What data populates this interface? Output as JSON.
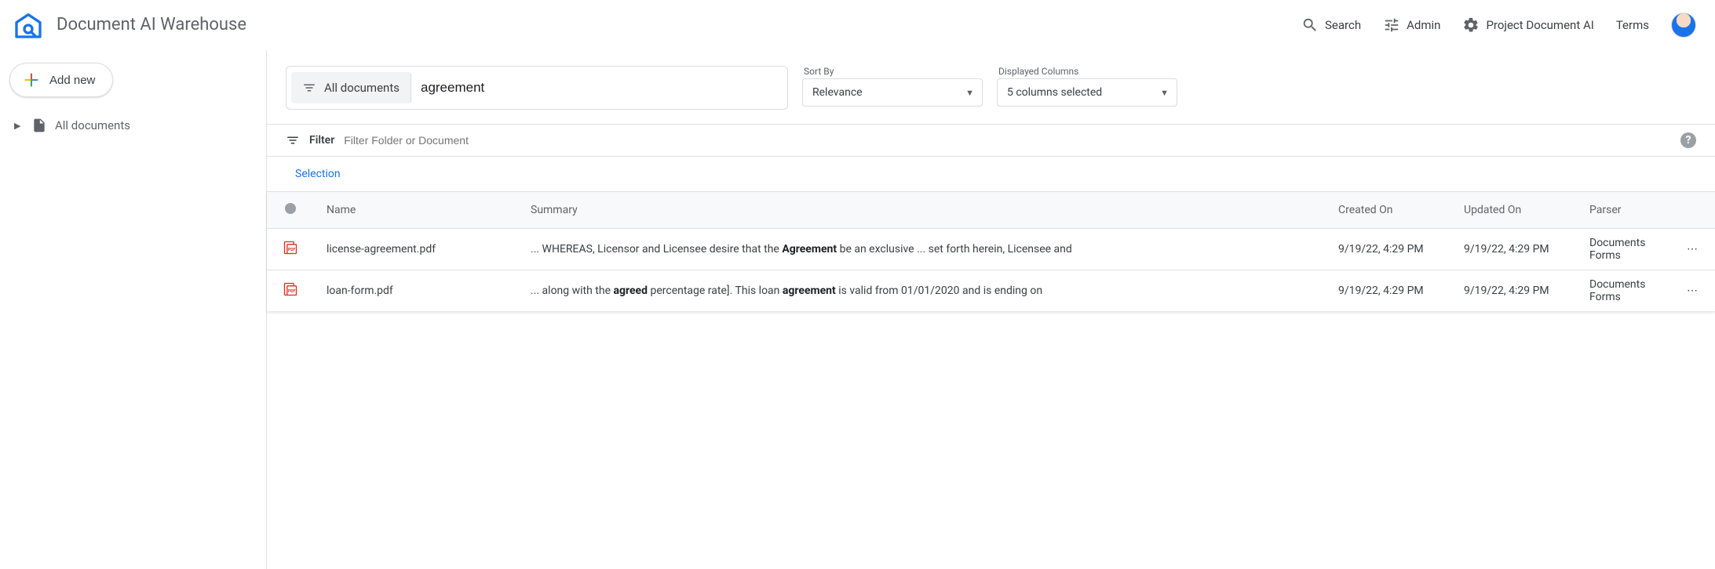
{
  "header": {
    "app_title": "Document AI Warehouse",
    "search_label": "Search",
    "admin_label": "Admin",
    "project_label": "Project Document AI",
    "terms_label": "Terms"
  },
  "sidebar": {
    "add_new_label": "Add new",
    "all_documents_label": "All documents"
  },
  "search": {
    "scope_label": "All documents",
    "query_value": "agreement",
    "sort_by_label": "Sort By",
    "sort_by_value": "Relevance",
    "columns_label": "Displayed Columns",
    "columns_value": "5 columns selected"
  },
  "filter": {
    "label": "Filter",
    "placeholder": "Filter Folder or Document"
  },
  "selection": {
    "label": "Selection"
  },
  "table": {
    "columns": {
      "name": "Name",
      "summary": "Summary",
      "created": "Created On",
      "updated": "Updated On",
      "parser": "Parser"
    },
    "rows": [
      {
        "name": "license-agreement.pdf",
        "summary_html": "... WHEREAS, Licensor and Licensee desire that the <b>Agreement</b> be an exclusive ... set forth herein, Licensee and",
        "created": "9/19/22, 4:29 PM",
        "updated": "9/19/22, 4:29 PM",
        "parser": "Documents Forms"
      },
      {
        "name": "loan-form.pdf",
        "summary_html": "... along with the <b>agreed</b> percentage rate]. This loan <b>agreement</b> is valid from 01/01/2020 and is ending on",
        "created": "9/19/22, 4:29 PM",
        "updated": "9/19/22, 4:29 PM",
        "parser": "Documents Forms"
      }
    ]
  },
  "colors": {
    "accent": "#1a73e8",
    "text_secondary": "#5f6368",
    "border": "#dadce0",
    "pdf_red": "#d93025"
  }
}
